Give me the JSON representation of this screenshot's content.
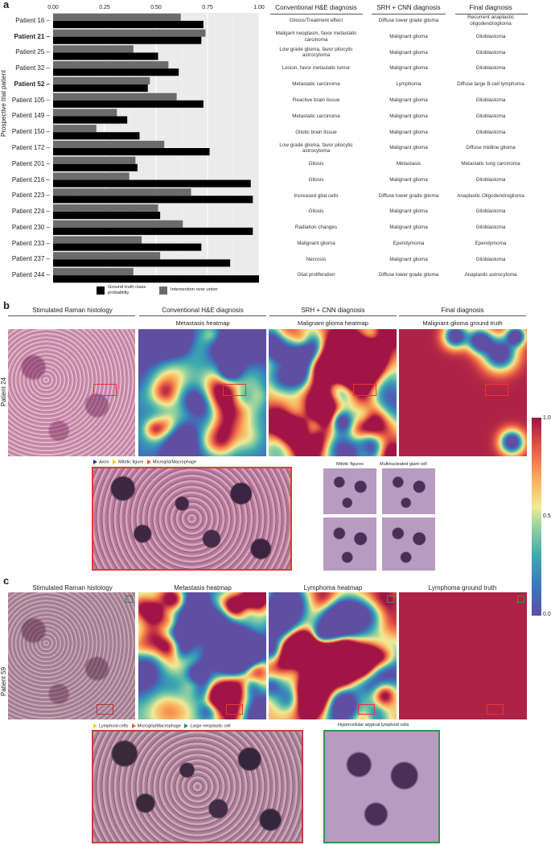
{
  "panel_a": {
    "letter": "a",
    "y_axis_title": "Prospective trial patient",
    "x_ticks": [
      "0.00",
      "0.25",
      "0.50",
      "0.75",
      "1.00"
    ],
    "legend": {
      "ground_truth": "Ground truth class probability",
      "iou": "Intersection over union",
      "ground_truth_color": "#000000",
      "iou_color": "#6b6b6b"
    },
    "table_headers": {
      "he": "Conventional H&E diagnosis",
      "srh": "SRH + CNN diagnosis",
      "final": "Final diagnosis"
    }
  },
  "chart_data": {
    "type": "bar",
    "orientation": "horizontal",
    "xlim": [
      0,
      1
    ],
    "grid": true,
    "legend_position": "bottom",
    "categories": [
      "Patient 16",
      "Patient 21",
      "Patient 25",
      "Patient 32",
      "Patient 52",
      "Patient 105",
      "Patient 149",
      "Patient 150",
      "Patient 172",
      "Patient 201",
      "Patient 216",
      "Patient 223",
      "Patient 224",
      "Patient 230",
      "Patient 233",
      "Patient 237",
      "Patient 244"
    ],
    "bold_categories": [
      "Patient 21",
      "Patient 52"
    ],
    "series": [
      {
        "name": "Intersection over union",
        "values": [
          0.62,
          0.74,
          0.39,
          0.56,
          0.47,
          0.6,
          0.31,
          0.21,
          0.54,
          0.4,
          0.37,
          0.67,
          0.51,
          0.63,
          0.43,
          0.52,
          0.39
        ]
      },
      {
        "name": "Ground truth class probability",
        "values": [
          0.73,
          0.72,
          0.51,
          0.61,
          0.46,
          0.73,
          0.36,
          0.42,
          0.76,
          0.41,
          0.96,
          0.97,
          0.52,
          0.97,
          0.72,
          0.86,
          1.0
        ]
      }
    ]
  },
  "table_rows": [
    {
      "he": "Gliosis/Treatment effect",
      "srh": "Diffuse lower grade glioma",
      "final": "Recurrent anaplastic oligodendroglioma"
    },
    {
      "he": "Maligant neoplasm, favor metastatic carcinoma",
      "srh": "Malignant glioma",
      "final": "Glioblastoma"
    },
    {
      "he": "Low grade glioma, favor pilocytic astrocytoma",
      "srh": "Malignant glioma",
      "final": "Glioblastoma"
    },
    {
      "he": "Lesion, favor metastatic tumor",
      "srh": "Malignant glioma",
      "final": "Glioblastoma"
    },
    {
      "he": "Metastatic carcinoma",
      "srh": "Lymphoma",
      "final": "Diffuse large B-cell lymphoma"
    },
    {
      "he": "Reactive brain tissue",
      "srh": "Malignant glioma",
      "final": "Glioblastoma"
    },
    {
      "he": "Metastatic carcinoma",
      "srh": "Malignant glioma",
      "final": "Glioblastoma"
    },
    {
      "he": "Gliotic brain tissue",
      "srh": "Malignant glioma",
      "final": "Glioblastoma"
    },
    {
      "he": "Low grade glioma, favor pilocytic astrocytoma",
      "srh": "Malignant glioma",
      "final": "Diffuse midline glioma"
    },
    {
      "he": "Gliosis",
      "srh": "Metastasis",
      "final": "Metastatic lung carcinoma"
    },
    {
      "he": "Gliosis",
      "srh": "Malignant glioma",
      "final": "Glioblastoma"
    },
    {
      "he": "Increased glial cells",
      "srh": "Diffuse lower grade glioma",
      "final": "Anaplastic Oligodendroglioma"
    },
    {
      "he": "Gliosis",
      "srh": "Malignant glioma",
      "final": "Glioblastoma"
    },
    {
      "he": "Radiation changes",
      "srh": "Malignant glioma",
      "final": "Glioblastoma"
    },
    {
      "he": "Malignant glioma",
      "srh": "Ependymoma",
      "final": "Ependymoma"
    },
    {
      "he": "Necrosis",
      "srh": "Malignant glioma",
      "final": "Glioblastoma"
    },
    {
      "he": "Glial proliferation",
      "srh": "Diffuse lower grade glioma",
      "final": "Anaplastic astrocytoma"
    }
  ],
  "panel_b": {
    "letter": "b",
    "headers": {
      "srh": "Stimulated Raman histology",
      "he": "Conventional H&E diagnosis",
      "cnn": "SRH + CNN diagnosis",
      "final": "Final diagnosis"
    },
    "patient": "Patient 24",
    "heatmap_titles": [
      "Metastasis heatmap",
      "Malignant glioma heatmap",
      "Malignant glioma ground truth"
    ],
    "inset_legend": [
      "Axon",
      "Mitotic figure",
      "Microglia/Macrophage"
    ],
    "inset_legend_colors": [
      "#2b3a9a",
      "#f2d21b",
      "#e8622c"
    ],
    "small_titles": [
      "Mitotic figures",
      "Multinucleated giant cell"
    ]
  },
  "colorbar": {
    "ticks": [
      "1.0",
      "0.5",
      "0.0"
    ]
  },
  "panel_c": {
    "letter": "c",
    "patient": "Patient 59",
    "headers": {
      "srh": "Stimulated Raman histology",
      "met": "Metastasis heatmap",
      "lym": "Lymphoma heatmap",
      "gt": "Lymphoma ground truth"
    },
    "inset_legend": [
      "Lymphoid cells",
      "Microglia/Macrophage",
      "Large neoplastic cell"
    ],
    "inset_legend_colors": [
      "#f2d21b",
      "#e8622c",
      "#2a9a4a"
    ],
    "right_title": "Hypercellular atypical lymphoid cells"
  }
}
